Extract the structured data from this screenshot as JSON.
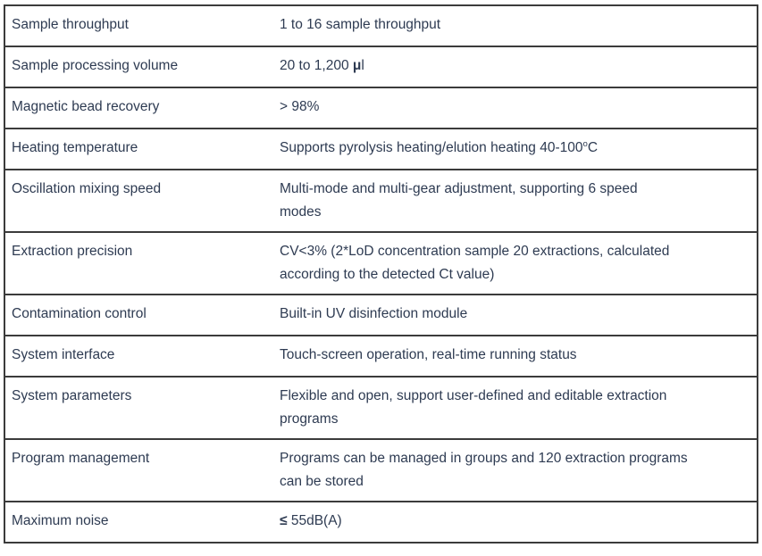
{
  "colors": {
    "text": "#2e3b52",
    "border": "#3b3b3b",
    "background": "#ffffff"
  },
  "table": {
    "name": "specification-table",
    "columns": [
      "parameter",
      "value"
    ],
    "rows": [
      {
        "label": "Sample throughput",
        "value": [
          {
            "t": "1 to 16 sample throughput"
          }
        ]
      },
      {
        "label": "Sample processing volume",
        "value": [
          {
            "t": "20 to 1,200 "
          },
          {
            "t": "μ",
            "bold": true
          },
          {
            "t": "l"
          }
        ]
      },
      {
        "label": "Magnetic bead recovery",
        "value": [
          {
            "t": "> 98%"
          }
        ]
      },
      {
        "label": "Heating temperature",
        "value": [
          {
            "t": "Supports pyrolysis heating/elution heating 40-100"
          },
          {
            "t": "o",
            "sup": true
          },
          {
            "t": "C"
          }
        ]
      },
      {
        "label": "Oscillation mixing speed",
        "value": [
          {
            "t": "Multi-mode and multi-gear adjustment, supporting 6 speed"
          },
          {
            "br": true
          },
          {
            "t": "modes"
          }
        ]
      },
      {
        "label": "Extraction precision",
        "value": [
          {
            "t": "CV<3% (2*LoD concentration sample 20 extractions, calculated"
          },
          {
            "br": true
          },
          {
            "t": "according to the detected Ct value)"
          }
        ]
      },
      {
        "label": "Contamination control",
        "value": [
          {
            "t": "Built-in UV disinfection module"
          }
        ]
      },
      {
        "label": "System interface",
        "value": [
          {
            "t": "Touch-screen operation, real-time running status"
          }
        ]
      },
      {
        "label": "System parameters",
        "value": [
          {
            "t": "Flexible and open, support user-defined and editable extraction"
          },
          {
            "br": true
          },
          {
            "t": "programs"
          }
        ]
      },
      {
        "label": "Program management",
        "value": [
          {
            "t": "Programs can be managed in groups and 120 extraction programs"
          },
          {
            "br": true
          },
          {
            "t": "can be stored"
          }
        ]
      },
      {
        "label": "Maximum noise",
        "value": [
          {
            "t": "≤ ",
            "bold": true
          },
          {
            "t": "55dB(A)"
          }
        ]
      }
    ]
  }
}
